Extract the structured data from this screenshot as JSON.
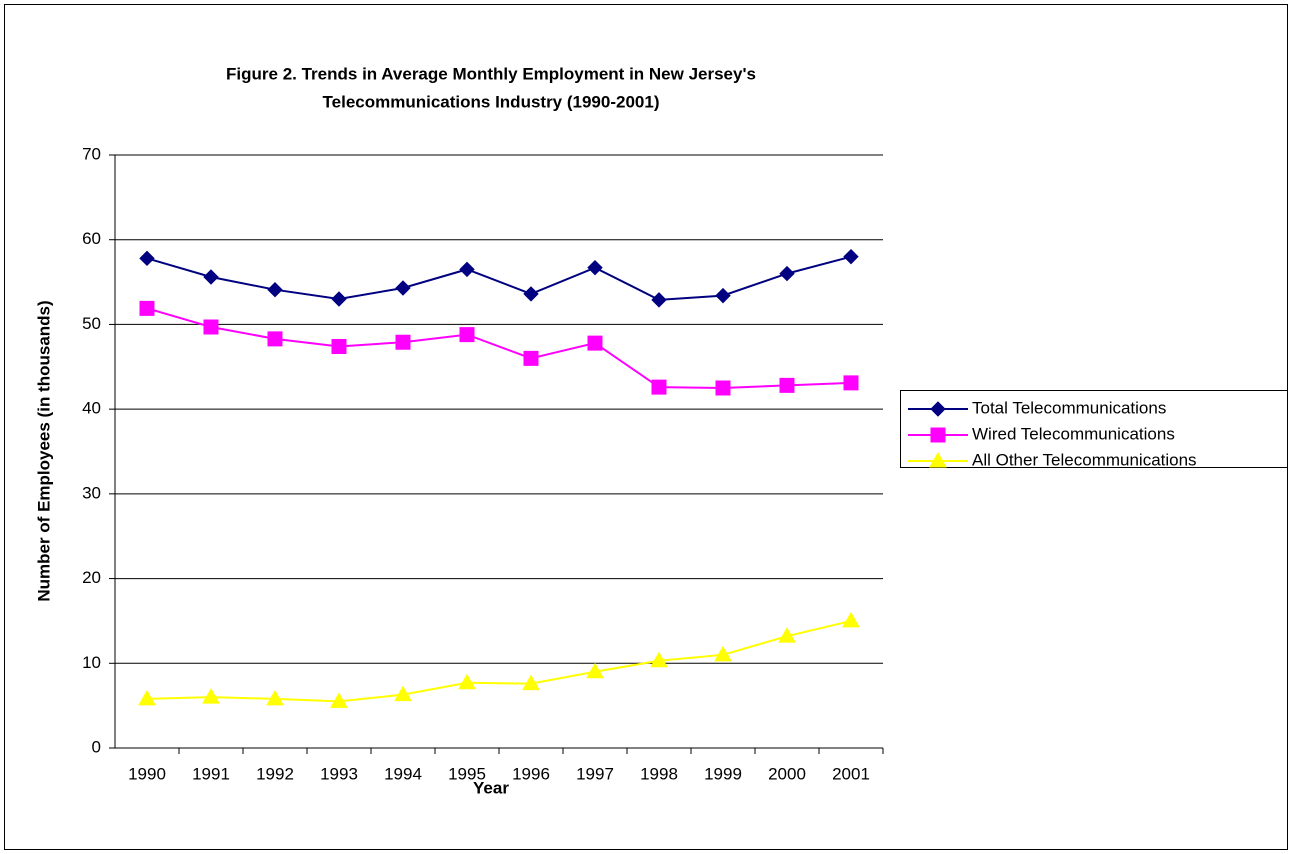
{
  "chart_data": {
    "type": "line",
    "title": [
      "Figure 2. Trends in Average Monthly Employment in New Jersey's",
      "Telecommunications Industry (1990-2001)"
    ],
    "xlabel": "Year",
    "ylabel": "Number of Employees (in thousands)",
    "categories": [
      "1990",
      "1991",
      "1992",
      "1993",
      "1994",
      "1995",
      "1996",
      "1997",
      "1998",
      "1999",
      "2000",
      "2001"
    ],
    "series": [
      {
        "name": "Total Telecommunications",
        "color": "#000080",
        "marker": "diamond",
        "values": [
          57.8,
          55.6,
          54.1,
          53.0,
          54.3,
          56.5,
          53.6,
          56.7,
          52.9,
          53.4,
          56.0,
          58.0
        ]
      },
      {
        "name": "Wired Telecommunications",
        "color": "#ff00ff",
        "marker": "square",
        "values": [
          51.9,
          49.7,
          48.3,
          47.4,
          47.9,
          48.8,
          46.0,
          47.8,
          42.6,
          42.5,
          42.8,
          43.1
        ]
      },
      {
        "name": "All Other Telecommunications",
        "color": "#ffff00",
        "marker": "triangle",
        "values": [
          5.8,
          6.0,
          5.8,
          5.5,
          6.3,
          7.7,
          7.6,
          9.0,
          10.3,
          11.0,
          13.2,
          15.0
        ]
      }
    ],
    "ylim": [
      0,
      70
    ],
    "yticks": [
      0,
      10,
      20,
      30,
      40,
      50,
      60,
      70
    ],
    "grid": true,
    "legend": "right"
  }
}
